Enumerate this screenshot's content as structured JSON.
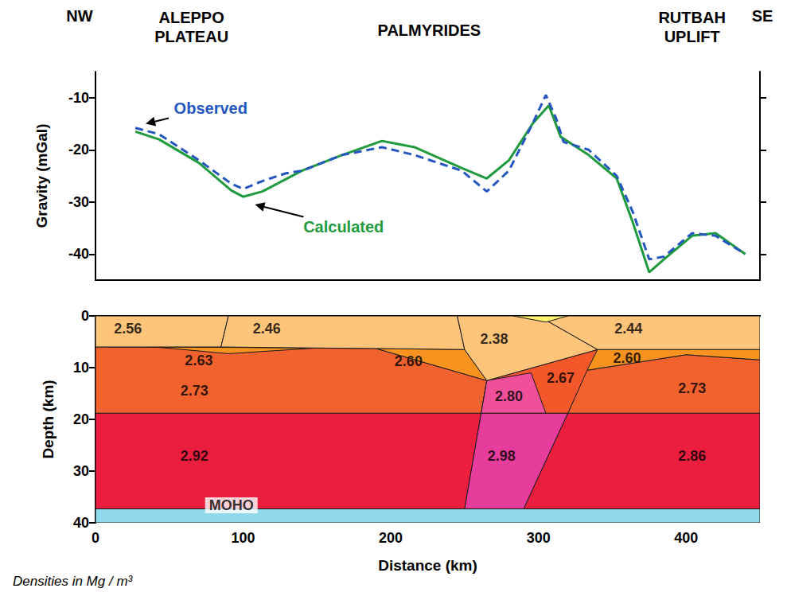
{
  "chart_data": [
    {
      "type": "line",
      "ylabel": "Gravity (mGal)",
      "xlim": [
        0,
        450
      ],
      "ylim": [
        -45,
        -5
      ],
      "yticks": [
        -40,
        -30,
        -20,
        -10
      ],
      "tick_labels": "y",
      "direction_labels": [
        "NW",
        "SE"
      ],
      "regions": [
        {
          "text": "ALEPPO PLATEAU",
          "x": 65
        },
        {
          "text": "PALMYRIDES",
          "x": 226
        },
        {
          "text": "RUTBAH UPLIFT",
          "x": 404
        }
      ],
      "series": [
        {
          "name": "Observed",
          "color": "#2456c0",
          "line_style": "dashed",
          "x": [
            27,
            43,
            70,
            92,
            100,
            113,
            129,
            140,
            167,
            194,
            216,
            248,
            265,
            280,
            296,
            305,
            312,
            317,
            334,
            353,
            364,
            375,
            385,
            404,
            420,
            440
          ],
          "values": [
            -15.8,
            -17,
            -22,
            -26.5,
            -27.5,
            -26,
            -24.5,
            -24,
            -21,
            -19.5,
            -21,
            -24,
            -28,
            -24,
            -15,
            -9.5,
            -14,
            -18.5,
            -20,
            -25,
            -32,
            -41,
            -40.5,
            -36,
            -36.5,
            -40
          ]
        },
        {
          "name": "Calculated",
          "color": "#1f9a3c",
          "line_style": "solid",
          "x": [
            27,
            43,
            70,
            92,
            100,
            113,
            140,
            167,
            194,
            216,
            248,
            265,
            280,
            296,
            307,
            315,
            334,
            353,
            364,
            375,
            385,
            404,
            420,
            440
          ],
          "values": [
            -16.5,
            -18,
            -22.5,
            -27.8,
            -29,
            -28,
            -24,
            -21,
            -18.3,
            -19.5,
            -23.5,
            -25.5,
            -22,
            -15,
            -11.5,
            -17.5,
            -21,
            -25.5,
            -34,
            -43.5,
            -41,
            -36.5,
            -36,
            -40
          ]
        }
      ],
      "annotations": [
        {
          "series": "Observed",
          "x": 78,
          "y": -12,
          "arrow_to": [
            34,
            -15
          ]
        },
        {
          "series": "Calculated",
          "x": 168,
          "y": -34.8,
          "arrow_to": [
            108,
            -30.5
          ]
        }
      ]
    },
    {
      "type": "cross_section",
      "xlabel": "Distance (km)",
      "ylabel": "Depth (km)",
      "note": "Densities in Mg / m³",
      "xlim": [
        0,
        450
      ],
      "ylim": [
        0,
        40
      ],
      "xticks": [
        0,
        100,
        200,
        300,
        400
      ],
      "yticks": [
        0,
        10,
        20,
        30,
        40
      ],
      "bodies": [
        {
          "value": 2.92,
          "value_label": "2.92",
          "color": "#ec1e40",
          "points": [
            [
              0,
              18.8
            ],
            [
              261.2,
              18.8
            ],
            [
              250,
              37.3
            ],
            [
              0,
              37.3
            ]
          ],
          "label_at": [
            67,
            27
          ]
        },
        {
          "value": 2.98,
          "value_label": "2.98",
          "color": "#e63c9c",
          "points": [
            [
              261.2,
              18.8
            ],
            [
              320,
              18.8
            ],
            [
              290,
              37.3
            ],
            [
              250,
              37.3
            ]
          ],
          "label_at": [
            275,
            27
          ]
        },
        {
          "value": 2.86,
          "value_label": "2.86",
          "color": "#ec1e40",
          "points": [
            [
              320,
              18.8
            ],
            [
              450,
              18.8
            ],
            [
              450,
              37.3
            ],
            [
              290,
              37.3
            ]
          ],
          "label_at": [
            404,
            27
          ]
        },
        {
          "value": 2.73,
          "value_label": "2.73",
          "color": "#f2622e",
          "points": [
            [
              0,
              6
            ],
            [
              190,
              6.3
            ],
            [
              265,
              12.5
            ],
            [
              261.2,
              18.8
            ],
            [
              0,
              18.8
            ]
          ],
          "label_at": [
            67,
            14.5
          ]
        },
        {
          "value": 2.67,
          "value_label": "2.67",
          "color": "#f4572a",
          "points": [
            [
              265,
              12.5
            ],
            [
              340,
              6.5
            ],
            [
              320,
              18.8
            ],
            [
              261.2,
              18.8
            ]
          ],
          "label_at": [
            315,
            12
          ]
        },
        {
          "value": 2.8,
          "value_label": "2.80",
          "color": "#f0509a",
          "points": [
            [
              265,
              12.5
            ],
            [
              295,
              11
            ],
            [
              305,
              18.8
            ],
            [
              261.2,
              18.8
            ]
          ],
          "label_at": [
            280,
            15.5
          ]
        },
        {
          "value": 2.73,
          "value_label": "2.73",
          "color": "#f2622e",
          "points": [
            [
              320,
              18.8
            ],
            [
              333,
              10.5
            ],
            [
              400,
              7.5
            ],
            [
              450,
              8.5
            ],
            [
              450,
              18.8
            ]
          ],
          "label_at": [
            404,
            14
          ]
        },
        {
          "value": 2.6,
          "value_label": "2.60",
          "color": "#f7931e",
          "points": [
            [
              340,
              6.5
            ],
            [
              450,
              6.5
            ],
            [
              450,
              8.5
            ],
            [
              400,
              7.5
            ],
            [
              333,
              10.5
            ]
          ],
          "label_at": [
            360,
            8.2
          ]
        },
        {
          "value": 2.6,
          "value_label": "2.60",
          "color": "#f7931e",
          "points": [
            [
              190,
              6.3
            ],
            [
              250,
              6.5
            ],
            [
              265,
              12.5
            ]
          ],
          "label_at": [
            212,
            8.8
          ]
        },
        {
          "value": 2.63,
          "value_label": "2.63",
          "color": "#f7931e",
          "points": [
            [
              40,
              6
            ],
            [
              150,
              6.2
            ],
            [
              90,
              7.3
            ]
          ],
          "label_at": [
            70,
            8.6
          ]
        },
        {
          "value": 2.56,
          "value_label": "2.56",
          "color": "#fdc47a",
          "points": [
            [
              0,
              0
            ],
            [
              90,
              0
            ],
            [
              85,
              6
            ],
            [
              0,
              6
            ]
          ],
          "label_at": [
            22,
            2.5
          ]
        },
        {
          "value": 2.46,
          "value_label": "2.46",
          "color": "#fdc47a",
          "points": [
            [
              90,
              0
            ],
            [
              245,
              0
            ],
            [
              250,
              6.5
            ],
            [
              190,
              6.3
            ],
            [
              150,
              6.2
            ],
            [
              85,
              6
            ]
          ],
          "label_at": [
            116,
            2.5
          ]
        },
        {
          "value": 2.38,
          "value_label": "2.38",
          "color": "#fdc47a",
          "points": [
            [
              245,
              0
            ],
            [
              300,
              0
            ],
            [
              340,
              6.5
            ],
            [
              265,
              12.5
            ],
            [
              250,
              6.5
            ]
          ],
          "label_at": [
            270,
            4.5
          ]
        },
        {
          "value": 2.44,
          "value_label": "2.44",
          "color": "#fdc47a",
          "points": [
            [
              300,
              0
            ],
            [
              450,
              0
            ],
            [
              450,
              6.5
            ],
            [
              340,
              6.5
            ]
          ],
          "label_at": [
            361,
            2.5
          ]
        },
        {
          "color": "#fff36e",
          "points": [
            [
              283,
              0
            ],
            [
              320,
              0
            ],
            [
              305,
              1.2
            ]
          ]
        },
        {
          "label": "MOHO",
          "color": "#8fd9ea",
          "points": [
            [
              0,
              37.3
            ],
            [
              450,
              37.3
            ],
            [
              450,
              40
            ],
            [
              0,
              40
            ]
          ],
          "label_at": [
            92,
            36.6
          ]
        }
      ]
    }
  ]
}
